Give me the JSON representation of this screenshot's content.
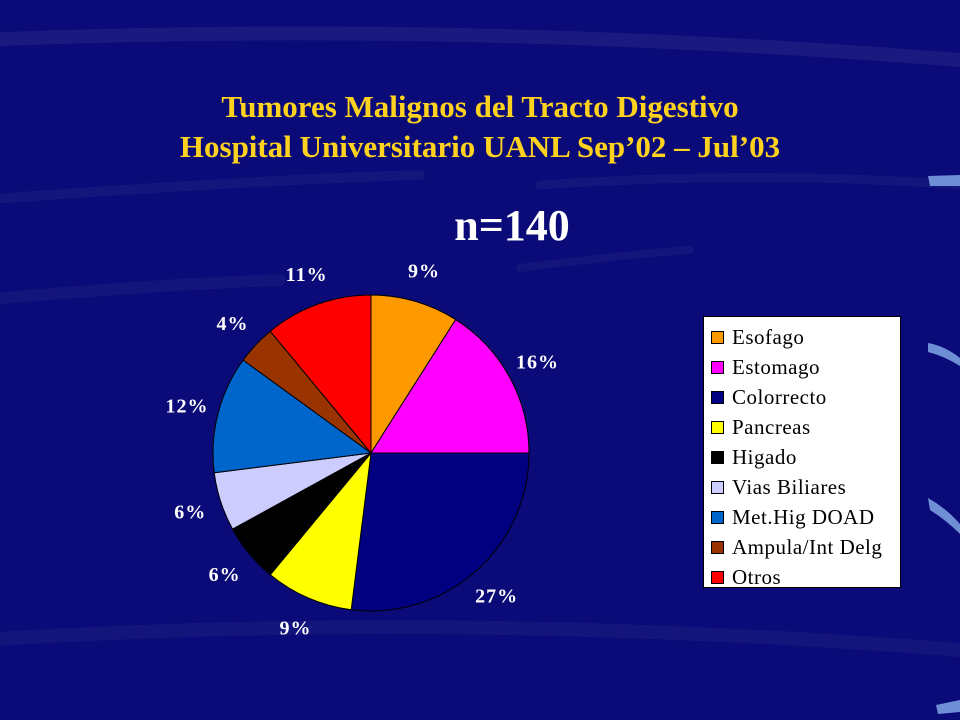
{
  "slide": {
    "title_line1": "Tumores Malignos del Tracto Digestivo",
    "title_line2": "Hospital Universitario  UANL  Sep’02 – Jul’03",
    "n_label": "n=140"
  },
  "chart_data": {
    "type": "pie",
    "start_angle_deg": 0,
    "direction": "clockwise",
    "slices": [
      {
        "name": "Esofago",
        "value": 9,
        "label": "9%",
        "color": "#ff9900"
      },
      {
        "name": "Estomago",
        "value": 16,
        "label": "16%",
        "color": "#ff00ff"
      },
      {
        "name": "Colorrecto",
        "value": 27,
        "label": "27%",
        "color": "#000080"
      },
      {
        "name": "Pancreas",
        "value": 9,
        "label": "9%",
        "color": "#ffff00"
      },
      {
        "name": "Higado",
        "value": 6,
        "label": "6%",
        "color": "#000000"
      },
      {
        "name": "Vias Biliares",
        "value": 6,
        "label": "6%",
        "color": "#ccccff"
      },
      {
        "name": "Met.Hig DOAD",
        "value": 12,
        "label": "12%",
        "color": "#0066cc"
      },
      {
        "name": "Ampula/Int Delg",
        "value": 4,
        "label": "4%",
        "color": "#993300"
      },
      {
        "name": "Otros",
        "value": 11,
        "label": "11%",
        "color": "#ff0000"
      }
    ],
    "legend_position": "right"
  },
  "colors": {
    "background": "#0a0a78",
    "title": "#ffd21e",
    "labels": "#ffffff"
  }
}
